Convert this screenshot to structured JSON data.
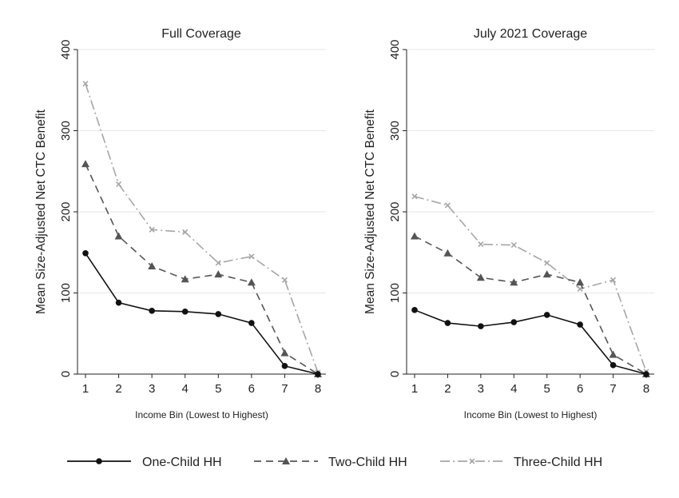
{
  "legend": [
    {
      "label": "One-Child HH",
      "series": "one"
    },
    {
      "label": "Two-Child HH",
      "series": "two"
    },
    {
      "label": "Three-Child HH",
      "series": "three"
    }
  ],
  "series_styles": {
    "one": {
      "color": "#111111",
      "dash": "",
      "marker": "circle"
    },
    "two": {
      "color": "#555555",
      "dash": "9,6",
      "marker": "triangle"
    },
    "three": {
      "color": "#a6a6a6",
      "dash": "12,4,2,4",
      "marker": "x"
    }
  },
  "chart_data": [
    {
      "type": "line",
      "title": "Full Coverage",
      "xlabel": "Income Bin (Lowest to Highest)",
      "ylabel": "Mean Size-Adjusted Net CTC Benefit",
      "x": [
        1,
        2,
        3,
        4,
        5,
        6,
        7,
        8
      ],
      "ylim": [
        0,
        400
      ],
      "yticks": [
        0,
        100,
        200,
        300,
        400
      ],
      "grid": true,
      "series": [
        {
          "key": "one",
          "name": "One-Child HH",
          "values": [
            149,
            88,
            78,
            77,
            74,
            63,
            10,
            0
          ]
        },
        {
          "key": "two",
          "name": "Two-Child HH",
          "values": [
            259,
            170,
            133,
            117,
            123,
            113,
            26,
            0
          ]
        },
        {
          "key": "three",
          "name": "Three-Child HH",
          "values": [
            358,
            234,
            178,
            175,
            137,
            145,
            116,
            2
          ]
        }
      ]
    },
    {
      "type": "line",
      "title": "July 2021 Coverage",
      "xlabel": "Income Bin (Lowest to Highest)",
      "ylabel": "Mean Size-Adjusted Net CTC Benefit",
      "x": [
        1,
        2,
        3,
        4,
        5,
        6,
        7,
        8
      ],
      "ylim": [
        0,
        400
      ],
      "yticks": [
        0,
        100,
        200,
        300,
        400
      ],
      "grid": true,
      "series": [
        {
          "key": "one",
          "name": "One-Child HH",
          "values": [
            79,
            63,
            59,
            64,
            73,
            61,
            11,
            0
          ]
        },
        {
          "key": "two",
          "name": "Two-Child HH",
          "values": [
            170,
            149,
            119,
            113,
            123,
            113,
            24,
            0
          ]
        },
        {
          "key": "three",
          "name": "Three-Child HH",
          "values": [
            219,
            208,
            160,
            159,
            137,
            105,
            116,
            3
          ]
        }
      ]
    }
  ]
}
